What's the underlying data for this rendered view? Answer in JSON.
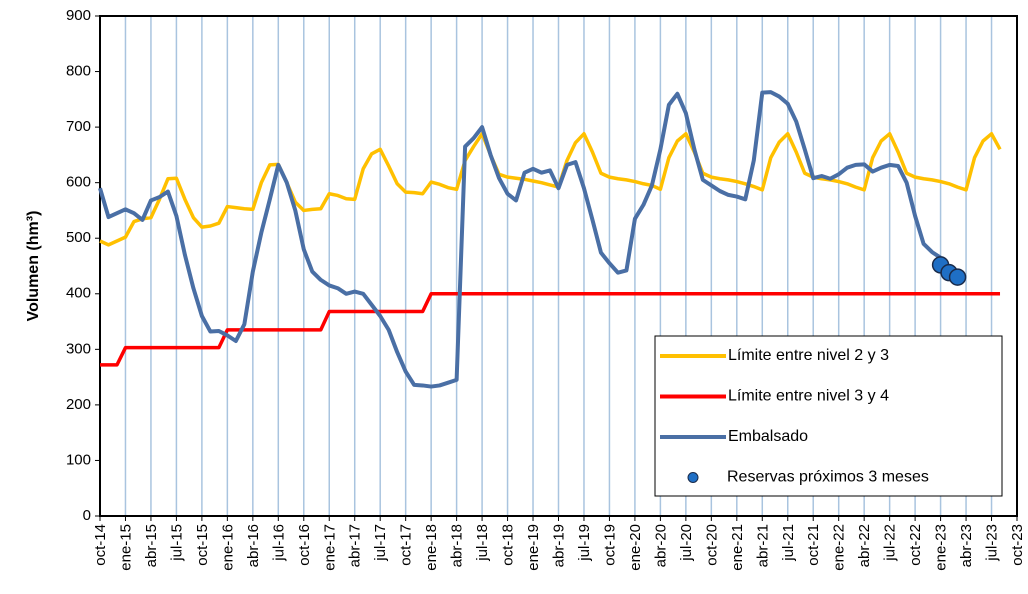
{
  "chart_data": {
    "type": "line",
    "y_label": "Volumen (hm³)",
    "ylim": [
      0,
      900
    ],
    "yticks": [
      0,
      100,
      200,
      300,
      400,
      500,
      600,
      700,
      800,
      900
    ],
    "grid": "x",
    "legend": "lower right",
    "categories": [
      "oct-14",
      null,
      null,
      "ene-15",
      null,
      null,
      "abr-15",
      null,
      null,
      "jul-15",
      null,
      null,
      "oct-15",
      null,
      null,
      "ene-16",
      null,
      null,
      "abr-16",
      null,
      null,
      "jul-16",
      null,
      null,
      "oct-16",
      null,
      null,
      "ene-17",
      null,
      null,
      "abr-17",
      null,
      null,
      "jul-17",
      null,
      null,
      "oct-17",
      null,
      null,
      "ene-18",
      null,
      null,
      "abr-18",
      null,
      null,
      "jul-18",
      null,
      null,
      "oct-18",
      null,
      null,
      "ene-19",
      null,
      null,
      "abr-19",
      null,
      null,
      "jul-19",
      null,
      null,
      "oct-19",
      null,
      null,
      "ene-20",
      null,
      null,
      "abr-20",
      null,
      null,
      "jul-20",
      null,
      null,
      "oct-20",
      null,
      null,
      "ene-21",
      null,
      null,
      "abr-21",
      null,
      null,
      "jul-21",
      null,
      null,
      "oct-21",
      null,
      null,
      "ene-22",
      null,
      null,
      "abr-22",
      null,
      null,
      "jul-22",
      null,
      null,
      "oct-22",
      null,
      null,
      "ene-23",
      null,
      null,
      "abr-23",
      null,
      null,
      "jul-23",
      null,
      null,
      "oct-23"
    ],
    "series": [
      {
        "name": "Límite entre nivel 2 y 3",
        "color": "#ffc000",
        "values": [
          495,
          488,
          495,
          502,
          530,
          535,
          537,
          570,
          607,
          608,
          570,
          537,
          520,
          522,
          527,
          557,
          555,
          553,
          552,
          600,
          632,
          633,
          600,
          565,
          550,
          552,
          553,
          580,
          577,
          571,
          570,
          625,
          652,
          660,
          630,
          598,
          583,
          582,
          580,
          601,
          597,
          591,
          588,
          640,
          665,
          688,
          650,
          615,
          610,
          608,
          606,
          603,
          600,
          596,
          592,
          640,
          672,
          688,
          655,
          617,
          610,
          607,
          605,
          602,
          598,
          595,
          588,
          645,
          675,
          688,
          655,
          617,
          610,
          607,
          605,
          602,
          598,
          593,
          587,
          645,
          673,
          688,
          655,
          617,
          610,
          607,
          605,
          602,
          598,
          592,
          587,
          645,
          675,
          688,
          655,
          617,
          610,
          607,
          605,
          602,
          598,
          592,
          587,
          645,
          675,
          688,
          660,
          null,
          null
        ]
      },
      {
        "name": "Límite entre nivel 3 y 4",
        "color": "#ff0000",
        "values": [
          272,
          272,
          272,
          303,
          303,
          303,
          303,
          303,
          303,
          303,
          303,
          303,
          303,
          303,
          303,
          335,
          335,
          335,
          335,
          335,
          335,
          335,
          335,
          335,
          335,
          335,
          335,
          368,
          368,
          368,
          368,
          368,
          368,
          368,
          368,
          368,
          368,
          368,
          368,
          400,
          400,
          400,
          400,
          400,
          400,
          400,
          400,
          400,
          400,
          400,
          400,
          400,
          400,
          400,
          400,
          400,
          400,
          400,
          400,
          400,
          400,
          400,
          400,
          400,
          400,
          400,
          400,
          400,
          400,
          400,
          400,
          400,
          400,
          400,
          400,
          400,
          400,
          400,
          400,
          400,
          400,
          400,
          400,
          400,
          400,
          400,
          400,
          400,
          400,
          400,
          400,
          400,
          400,
          400,
          400,
          400,
          400,
          400,
          400,
          400,
          400,
          400,
          400,
          400,
          400,
          400,
          400,
          null,
          null
        ]
      },
      {
        "name": "Embalsado",
        "color": "#4a6fa5",
        "values": [
          590,
          538,
          545,
          552,
          545,
          533,
          568,
          574,
          584,
          540,
          470,
          410,
          360,
          332,
          333,
          325,
          315,
          345,
          440,
          510,
          570,
          632,
          600,
          550,
          480,
          440,
          425,
          415,
          410,
          400,
          404,
          400,
          380,
          360,
          335,
          295,
          260,
          236,
          235,
          233,
          235,
          240,
          245,
          665,
          680,
          700,
          650,
          608,
          580,
          568,
          618,
          625,
          618,
          622,
          590,
          632,
          637,
          590,
          533,
          474,
          455,
          438,
          442,
          535,
          560,
          595,
          660,
          740,
          760,
          725,
          660,
          605,
          595,
          585,
          578,
          575,
          570,
          640,
          762,
          763,
          755,
          742,
          710,
          660,
          608,
          612,
          607,
          615,
          627,
          632,
          633,
          620,
          627,
          632,
          630,
          600,
          540,
          490,
          475,
          465,
          null,
          null,
          null,
          null,
          null,
          null,
          null,
          null,
          null
        ]
      },
      {
        "name": "Reservas próximos 3 meses",
        "color": "#1f6fc5",
        "marker": true,
        "values": [
          null,
          null,
          null,
          null,
          null,
          null,
          null,
          null,
          null,
          null,
          null,
          null,
          null,
          null,
          null,
          null,
          null,
          null,
          null,
          null,
          null,
          null,
          null,
          null,
          null,
          null,
          null,
          null,
          null,
          null,
          null,
          null,
          null,
          null,
          null,
          null,
          null,
          null,
          null,
          null,
          null,
          null,
          null,
          null,
          null,
          null,
          null,
          null,
          null,
          null,
          null,
          null,
          null,
          null,
          null,
          null,
          null,
          null,
          null,
          null,
          null,
          null,
          null,
          null,
          null,
          null,
          null,
          null,
          null,
          null,
          null,
          null,
          null,
          null,
          null,
          null,
          null,
          null,
          null,
          null,
          null,
          null,
          null,
          null,
          null,
          null,
          null,
          null,
          null,
          null,
          null,
          null,
          null,
          null,
          null,
          null,
          null,
          null,
          null,
          452,
          438,
          430,
          null,
          null,
          null,
          null,
          null,
          null,
          null
        ]
      }
    ]
  }
}
